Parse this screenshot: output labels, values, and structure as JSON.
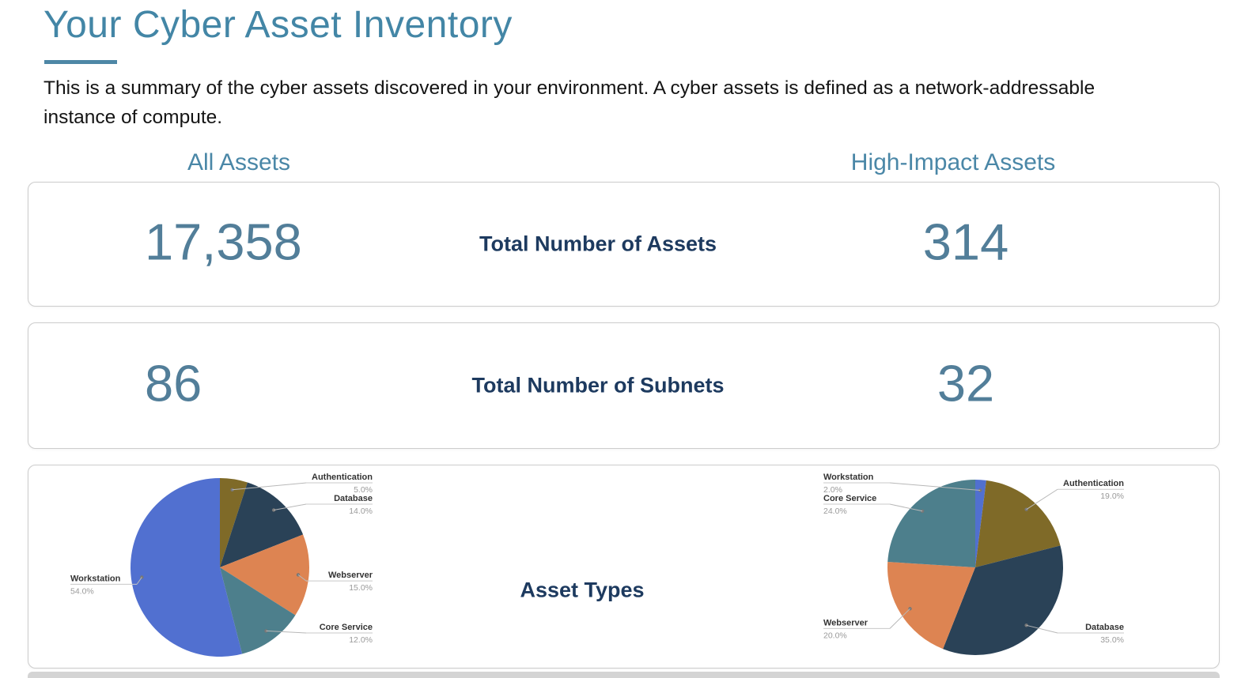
{
  "page": {
    "title": "Your Cyber Asset Inventory",
    "subtitle": "This is a summary of the cyber assets discovered in your environment. A cyber assets is defined as a network-addressable instance of compute."
  },
  "columns": {
    "left": "All Assets",
    "right": "High-Impact Assets"
  },
  "rows": [
    {
      "label": "Total Number of Assets",
      "all": "17,358",
      "high": "314"
    },
    {
      "label": "Total Number of Subnets",
      "all": "86",
      "high": "32"
    },
    {
      "label": "Asset Types"
    }
  ],
  "colors": {
    "title_teal": "#4386a6",
    "header_teal": "#4a87a7",
    "value_teal": "#527e99",
    "label_navy": "#1d3a5f",
    "card_border": "#cccccc"
  },
  "chart_data": [
    {
      "type": "pie",
      "title": "All Assets",
      "start_angle": "top",
      "direction": "clockwise",
      "labels_style": "outside-callouts-with-leader-lines",
      "slices": [
        {
          "label": "Authentication",
          "value": 5.0,
          "color": "#7f6a28"
        },
        {
          "label": "Database",
          "value": 14.0,
          "color": "#2a4257"
        },
        {
          "label": "Webserver",
          "value": 15.0,
          "color": "#dd8452"
        },
        {
          "label": "Core Service",
          "value": 12.0,
          "color": "#4d7f8c"
        },
        {
          "label": "Workstation",
          "value": 54.0,
          "color": "#5170d0"
        }
      ]
    },
    {
      "type": "pie",
      "title": "High-Impact Assets",
      "start_angle": "top",
      "direction": "clockwise",
      "labels_style": "outside-callouts-with-leader-lines",
      "slices": [
        {
          "label": "Workstation",
          "value": 2.0,
          "color": "#5170d0"
        },
        {
          "label": "Authentication",
          "value": 19.0,
          "color": "#7f6a28"
        },
        {
          "label": "Database",
          "value": 35.0,
          "color": "#2a4257"
        },
        {
          "label": "Webserver",
          "value": 20.0,
          "color": "#dd8452"
        },
        {
          "label": "Core Service",
          "value": 24.0,
          "color": "#4d7f8c"
        }
      ]
    }
  ]
}
